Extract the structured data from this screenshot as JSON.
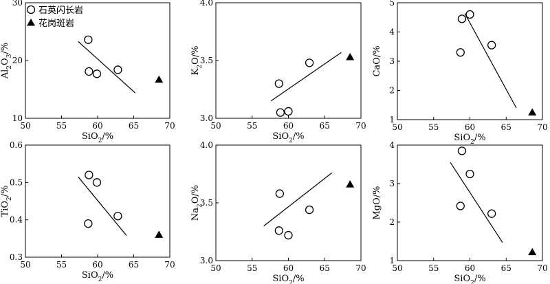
{
  "legend": {
    "items": [
      {
        "label": "石英闪长岩",
        "marker": "open-circle"
      },
      {
        "label": "花岗斑岩",
        "marker": "filled-triangle"
      }
    ],
    "placement": "top-left of first panel"
  },
  "chart_data": [
    {
      "type": "scatter",
      "xlabel": "SiO2/%",
      "ylabel": "Al2O3/%",
      "xlim": [
        50,
        70
      ],
      "ylim": [
        10,
        30
      ],
      "xticks": [
        "50",
        "55",
        "60",
        "65",
        "70"
      ],
      "yticks": [
        "10",
        "20",
        "30"
      ],
      "grid": false,
      "series": [
        {
          "name": "石英闪长岩",
          "marker": "open-circle",
          "points": [
            [
              58.7,
              23.6
            ],
            [
              58.8,
              18.1
            ],
            [
              59.9,
              17.7
            ],
            [
              62.8,
              18.4
            ]
          ]
        },
        {
          "name": "花岗斑岩",
          "marker": "filled-triangle",
          "points": [
            [
              68.5,
              16.7
            ]
          ]
        }
      ],
      "trendline": [
        [
          57.3,
          23.3
        ],
        [
          65.2,
          14.4
        ]
      ]
    },
    {
      "type": "scatter",
      "xlabel": "SiO2/%",
      "ylabel": "K2O/%",
      "xlim": [
        50,
        70
      ],
      "ylim": [
        3.0,
        4.0
      ],
      "xticks": [
        "50",
        "55",
        "60",
        "65",
        "70"
      ],
      "yticks": [
        "3.0",
        "3.5",
        "4.0"
      ],
      "grid": false,
      "series": [
        {
          "name": "石英闪长岩",
          "marker": "open-circle",
          "points": [
            [
              58.7,
              3.3
            ],
            [
              58.9,
              3.05
            ],
            [
              60.0,
              3.06
            ],
            [
              62.9,
              3.48
            ]
          ]
        },
        {
          "name": "花岗斑岩",
          "marker": "filled-triangle",
          "points": [
            [
              68.5,
              3.53
            ]
          ]
        }
      ],
      "trendline": [
        [
          57.6,
          3.15
        ],
        [
          67.3,
          3.57
        ]
      ]
    },
    {
      "type": "scatter",
      "xlabel": "SiO2/%",
      "ylabel": "CaO/%",
      "xlim": [
        50,
        70
      ],
      "ylim": [
        1,
        5
      ],
      "xticks": [
        "50",
        "55",
        "60",
        "65",
        "70"
      ],
      "yticks": [
        "1",
        "2",
        "3",
        "4",
        "5"
      ],
      "grid": false,
      "series": [
        {
          "name": "石英闪长岩",
          "marker": "open-circle",
          "points": [
            [
              58.7,
              3.3
            ],
            [
              58.9,
              4.45
            ],
            [
              60.0,
              4.6
            ],
            [
              63.0,
              3.55
            ]
          ]
        },
        {
          "name": "花岗斑岩",
          "marker": "filled-triangle",
          "points": [
            [
              68.6,
              1.25
            ]
          ]
        }
      ],
      "trendline": [
        [
          59.3,
          4.63
        ],
        [
          66.4,
          1.4
        ]
      ]
    },
    {
      "type": "scatter",
      "xlabel": "SiO2/%",
      "ylabel": "TiO2/%",
      "xlim": [
        50,
        70
      ],
      "ylim": [
        0.3,
        0.6
      ],
      "xticks": [
        "50",
        "55",
        "60",
        "65",
        "70"
      ],
      "yticks": [
        "0.3",
        "0.4",
        "0.5",
        "0.6"
      ],
      "grid": false,
      "series": [
        {
          "name": "石英闪长岩",
          "marker": "open-circle",
          "points": [
            [
              58.7,
              0.39
            ],
            [
              58.8,
              0.52
            ],
            [
              59.9,
              0.5
            ],
            [
              62.8,
              0.41
            ]
          ]
        },
        {
          "name": "花岗斑岩",
          "marker": "filled-triangle",
          "points": [
            [
              68.5,
              0.36
            ]
          ]
        }
      ],
      "trendline": [
        [
          57.3,
          0.515
        ],
        [
          64.0,
          0.358
        ]
      ]
    },
    {
      "type": "scatter",
      "xlabel": "SiO2/%",
      "ylabel": "Na2O/%",
      "xlim": [
        50,
        70
      ],
      "ylim": [
        3.0,
        4.0
      ],
      "xticks": [
        "50",
        "55",
        "60",
        "65",
        "70"
      ],
      "yticks": [
        "3.0",
        "3.5",
        "4.0"
      ],
      "grid": false,
      "series": [
        {
          "name": "石英闪长岩",
          "marker": "open-circle",
          "points": [
            [
              58.8,
              3.58
            ],
            [
              58.7,
              3.26
            ],
            [
              60.0,
              3.22
            ],
            [
              62.9,
              3.44
            ]
          ]
        },
        {
          "name": "花岗斑岩",
          "marker": "filled-triangle",
          "points": [
            [
              68.5,
              3.66
            ]
          ]
        }
      ],
      "trendline": [
        [
          56.6,
          3.3
        ],
        [
          66.0,
          3.76
        ]
      ]
    },
    {
      "type": "scatter",
      "xlabel": "SiO2/%",
      "ylabel": "MgO/%",
      "xlim": [
        50,
        70
      ],
      "ylim": [
        1,
        4
      ],
      "xticks": [
        "50",
        "55",
        "60",
        "65",
        "70"
      ],
      "yticks": [
        "1",
        "2",
        "3",
        "4"
      ],
      "grid": false,
      "series": [
        {
          "name": "石英闪长岩",
          "marker": "open-circle",
          "points": [
            [
              58.9,
              3.85
            ],
            [
              58.7,
              2.42
            ],
            [
              60.0,
              3.25
            ],
            [
              63.0,
              2.22
            ]
          ]
        },
        {
          "name": "花岗斑岩",
          "marker": "filled-triangle",
          "points": [
            [
              68.6,
              1.22
            ]
          ]
        }
      ],
      "trendline": [
        [
          57.3,
          3.55
        ],
        [
          64.5,
          1.47
        ]
      ]
    }
  ]
}
